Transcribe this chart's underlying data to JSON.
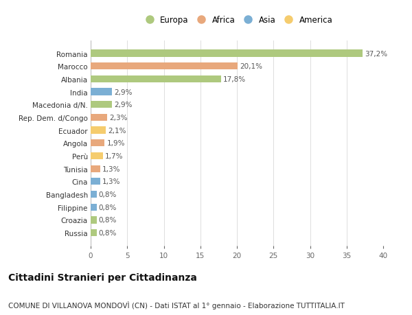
{
  "categories": [
    "Russia",
    "Croazia",
    "Filippine",
    "Bangladesh",
    "Cina",
    "Tunisia",
    "Perù",
    "Angola",
    "Ecuador",
    "Rep. Dem. d/Congo",
    "Macedonia d/N.",
    "India",
    "Albania",
    "Marocco",
    "Romania"
  ],
  "values": [
    0.8,
    0.8,
    0.8,
    0.8,
    1.3,
    1.3,
    1.7,
    1.9,
    2.1,
    2.3,
    2.9,
    2.9,
    17.8,
    20.1,
    37.2
  ],
  "labels": [
    "0,8%",
    "0,8%",
    "0,8%",
    "0,8%",
    "1,3%",
    "1,3%",
    "1,7%",
    "1,9%",
    "2,1%",
    "2,3%",
    "2,9%",
    "2,9%",
    "17,8%",
    "20,1%",
    "37,2%"
  ],
  "colors": [
    "#aec97e",
    "#aec97e",
    "#7bafd4",
    "#7bafd4",
    "#7bafd4",
    "#e8a87c",
    "#f5cc6e",
    "#e8a87c",
    "#f5cc6e",
    "#e8a87c",
    "#aec97e",
    "#7bafd4",
    "#aec97e",
    "#e8a87c",
    "#aec97e"
  ],
  "legend_labels": [
    "Europa",
    "Africa",
    "Asia",
    "America"
  ],
  "legend_colors": [
    "#aec97e",
    "#e8a87c",
    "#7bafd4",
    "#f5cc6e"
  ],
  "xlim": [
    0,
    40
  ],
  "xticks": [
    0,
    5,
    10,
    15,
    20,
    25,
    30,
    35,
    40
  ],
  "title": "Cittadini Stranieri per Cittadinanza",
  "subtitle": "COMUNE DI VILLANOVA MONDOVÌ (CN) - Dati ISTAT al 1° gennaio - Elaborazione TUTTITALIA.IT",
  "background_color": "#ffffff",
  "grid_color": "#dddddd",
  "bar_height": 0.55,
  "label_fontsize": 7.5,
  "tick_fontsize": 7.5,
  "legend_fontsize": 8.5,
  "title_fontsize": 10,
  "subtitle_fontsize": 7.5
}
